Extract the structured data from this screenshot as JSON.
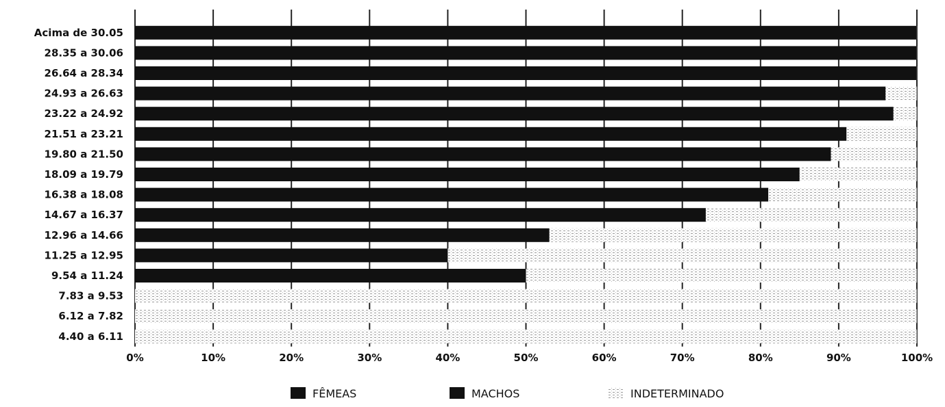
{
  "chart_data": {
    "type": "bar",
    "orientation": "horizontal",
    "stacked": true,
    "percent": true,
    "categories": [
      "Acima de 30.05",
      "28.35 a 30.06",
      "26.64 a 28.34",
      "24.93 a 26.63",
      "23.22 a 24.92",
      "21.51 a 23.21",
      "19.80 a 21.50",
      "18.09 a 19.79",
      "16.38 a 18.08",
      "14.67 a 16.37",
      "12.96 a 14.66",
      "11.25 a 12.95",
      "9.54 a 11.24",
      "7.83 a 9.53",
      "6.12 a 7.82",
      "4.40 a 6.11"
    ],
    "series": [
      {
        "name": "FÊMEAS",
        "color": "#111111",
        "pattern": "solid",
        "values": [
          100,
          100,
          100,
          96,
          97,
          91,
          89,
          85,
          81,
          73,
          53,
          40,
          50,
          0,
          0,
          0
        ]
      },
      {
        "name": "MACHOS",
        "color": "#111111",
        "pattern": "solid",
        "values": [
          0,
          0,
          0,
          0,
          0,
          0,
          0,
          0,
          0,
          0,
          0,
          0,
          0,
          0,
          0,
          0
        ]
      },
      {
        "name": "INDETERMINADO",
        "color": "#ffffff",
        "pattern": "dotted",
        "values": [
          0,
          0,
          0,
          4,
          3,
          9,
          11,
          15,
          19,
          27,
          47,
          60,
          50,
          100,
          100,
          100
        ]
      }
    ],
    "x_ticks": [
      "0%",
      "10%",
      "20%",
      "30%",
      "40%",
      "50%",
      "60%",
      "70%",
      "80%",
      "90%",
      "100%"
    ],
    "xlim": [
      0,
      100
    ],
    "grid": true,
    "legend_position": "bottom",
    "title": "",
    "xlabel": "",
    "ylabel": ""
  }
}
